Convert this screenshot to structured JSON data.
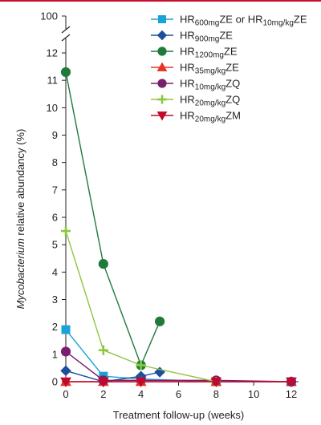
{
  "chart_data": {
    "type": "line",
    "xlabel": "Treatment follow-up (weeks)",
    "ylabel_italic": "Mycobacterium",
    "ylabel_rest": " relative abundancy (%)",
    "x_ticks": [
      0,
      2,
      4,
      6,
      8,
      10,
      12
    ],
    "y_ticks": [
      0,
      1,
      2,
      3,
      4,
      5,
      6,
      7,
      8,
      9,
      10,
      11,
      12
    ],
    "y_top_label": "100",
    "xlim": [
      0,
      12
    ],
    "ylim": [
      0,
      12
    ],
    "y_axis_break": true,
    "legend_position": "top-right",
    "series": [
      {
        "key": "s1",
        "color": "#1aa3d9",
        "marker": "square",
        "legend": {
          "pre": "HR",
          "sub1": "600mg",
          "mid": "ZE or HR",
          "sub2": "10mg/kg",
          "post": "ZE"
        },
        "x": [
          0,
          2,
          4,
          8,
          12
        ],
        "y": [
          1.9,
          0.2,
          0.1,
          0.0,
          0.0
        ]
      },
      {
        "key": "s2",
        "color": "#1f4e9e",
        "marker": "diamond",
        "legend": {
          "pre": "HR",
          "sub1": "900mg",
          "post": "ZE"
        },
        "x": [
          0,
          2,
          4,
          5
        ],
        "y": [
          0.4,
          0.0,
          0.2,
          0.35
        ]
      },
      {
        "key": "s3",
        "color": "#1f7a3c",
        "marker": "circle",
        "legend": {
          "pre": "HR",
          "sub1": "1200mg",
          "post": "ZE"
        },
        "x": [
          0,
          2,
          4,
          5
        ],
        "y": [
          11.3,
          4.3,
          0.6,
          2.2
        ]
      },
      {
        "key": "s4",
        "color": "#e63324",
        "marker": "triangle-up",
        "legend": {
          "pre": "HR",
          "sub1": "35mg/kg",
          "post": "ZE"
        },
        "x": [
          0,
          2,
          4,
          8,
          12
        ],
        "y": [
          0.0,
          0.0,
          0.0,
          0.0,
          0.0
        ]
      },
      {
        "key": "s5",
        "color": "#7a1f6e",
        "marker": "circle",
        "legend": {
          "pre": "HR",
          "sub1": "10mg/kg",
          "post": "ZQ"
        },
        "x": [
          0,
          2,
          8,
          12
        ],
        "y": [
          1.1,
          0.05,
          0.05,
          0.0
        ]
      },
      {
        "key": "s6",
        "color": "#8dc63f",
        "marker": "plus",
        "legend": {
          "pre": "HR",
          "sub1": "20mg/kg",
          "post": "ZQ"
        },
        "x": [
          0,
          2,
          4,
          8
        ],
        "y": [
          5.5,
          1.15,
          0.6,
          0.0
        ]
      },
      {
        "key": "s7",
        "color": "#c00a2b",
        "marker": "triangle-down",
        "legend": {
          "pre": "HR",
          "sub1": "20mg/kg",
          "post": "ZM"
        },
        "x": [
          0,
          2,
          4,
          8,
          12
        ],
        "y": [
          0.0,
          0.0,
          0.0,
          0.0,
          0.0
        ]
      }
    ]
  }
}
